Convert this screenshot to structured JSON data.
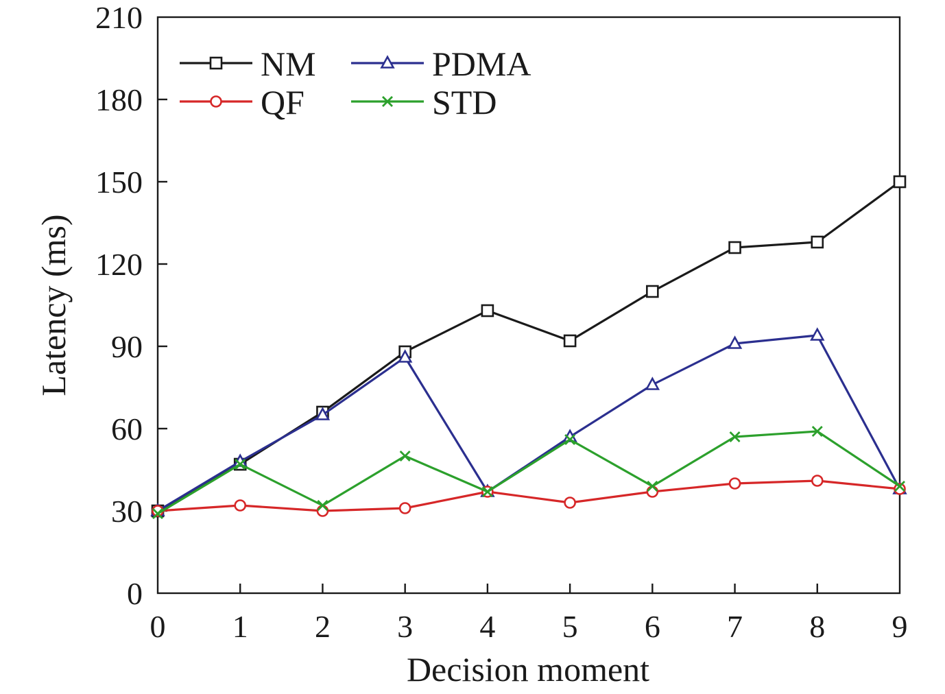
{
  "chart_data": {
    "type": "line",
    "xlabel": "Decision moment",
    "ylabel": "Latency (ms)",
    "xlim": [
      0,
      9
    ],
    "ylim": [
      0,
      210
    ],
    "x_ticks": [
      0,
      1,
      2,
      3,
      4,
      5,
      6,
      7,
      8,
      9
    ],
    "y_ticks": [
      0,
      30,
      60,
      90,
      120,
      150,
      180,
      210
    ],
    "grid": false,
    "legend_position": "top-left",
    "x": [
      0,
      1,
      2,
      3,
      4,
      5,
      6,
      7,
      8,
      9
    ],
    "series": [
      {
        "name": "NM",
        "marker": "square",
        "color": "#1a1a1a",
        "values": [
          30,
          47,
          66,
          88,
          103,
          92,
          110,
          126,
          128,
          150
        ]
      },
      {
        "name": "PDMA",
        "marker": "triangle",
        "color": "#2b2f8f",
        "values": [
          30,
          48,
          65,
          86,
          37,
          57,
          76,
          91,
          94,
          38
        ]
      },
      {
        "name": "QF",
        "marker": "circle",
        "color": "#d62728",
        "values": [
          30,
          32,
          30,
          31,
          37,
          33,
          37,
          40,
          41,
          38
        ]
      },
      {
        "name": "STD",
        "marker": "x",
        "color": "#2ca02c",
        "values": [
          29,
          47,
          32,
          50,
          37,
          56,
          39,
          57,
          59,
          39
        ]
      }
    ]
  }
}
